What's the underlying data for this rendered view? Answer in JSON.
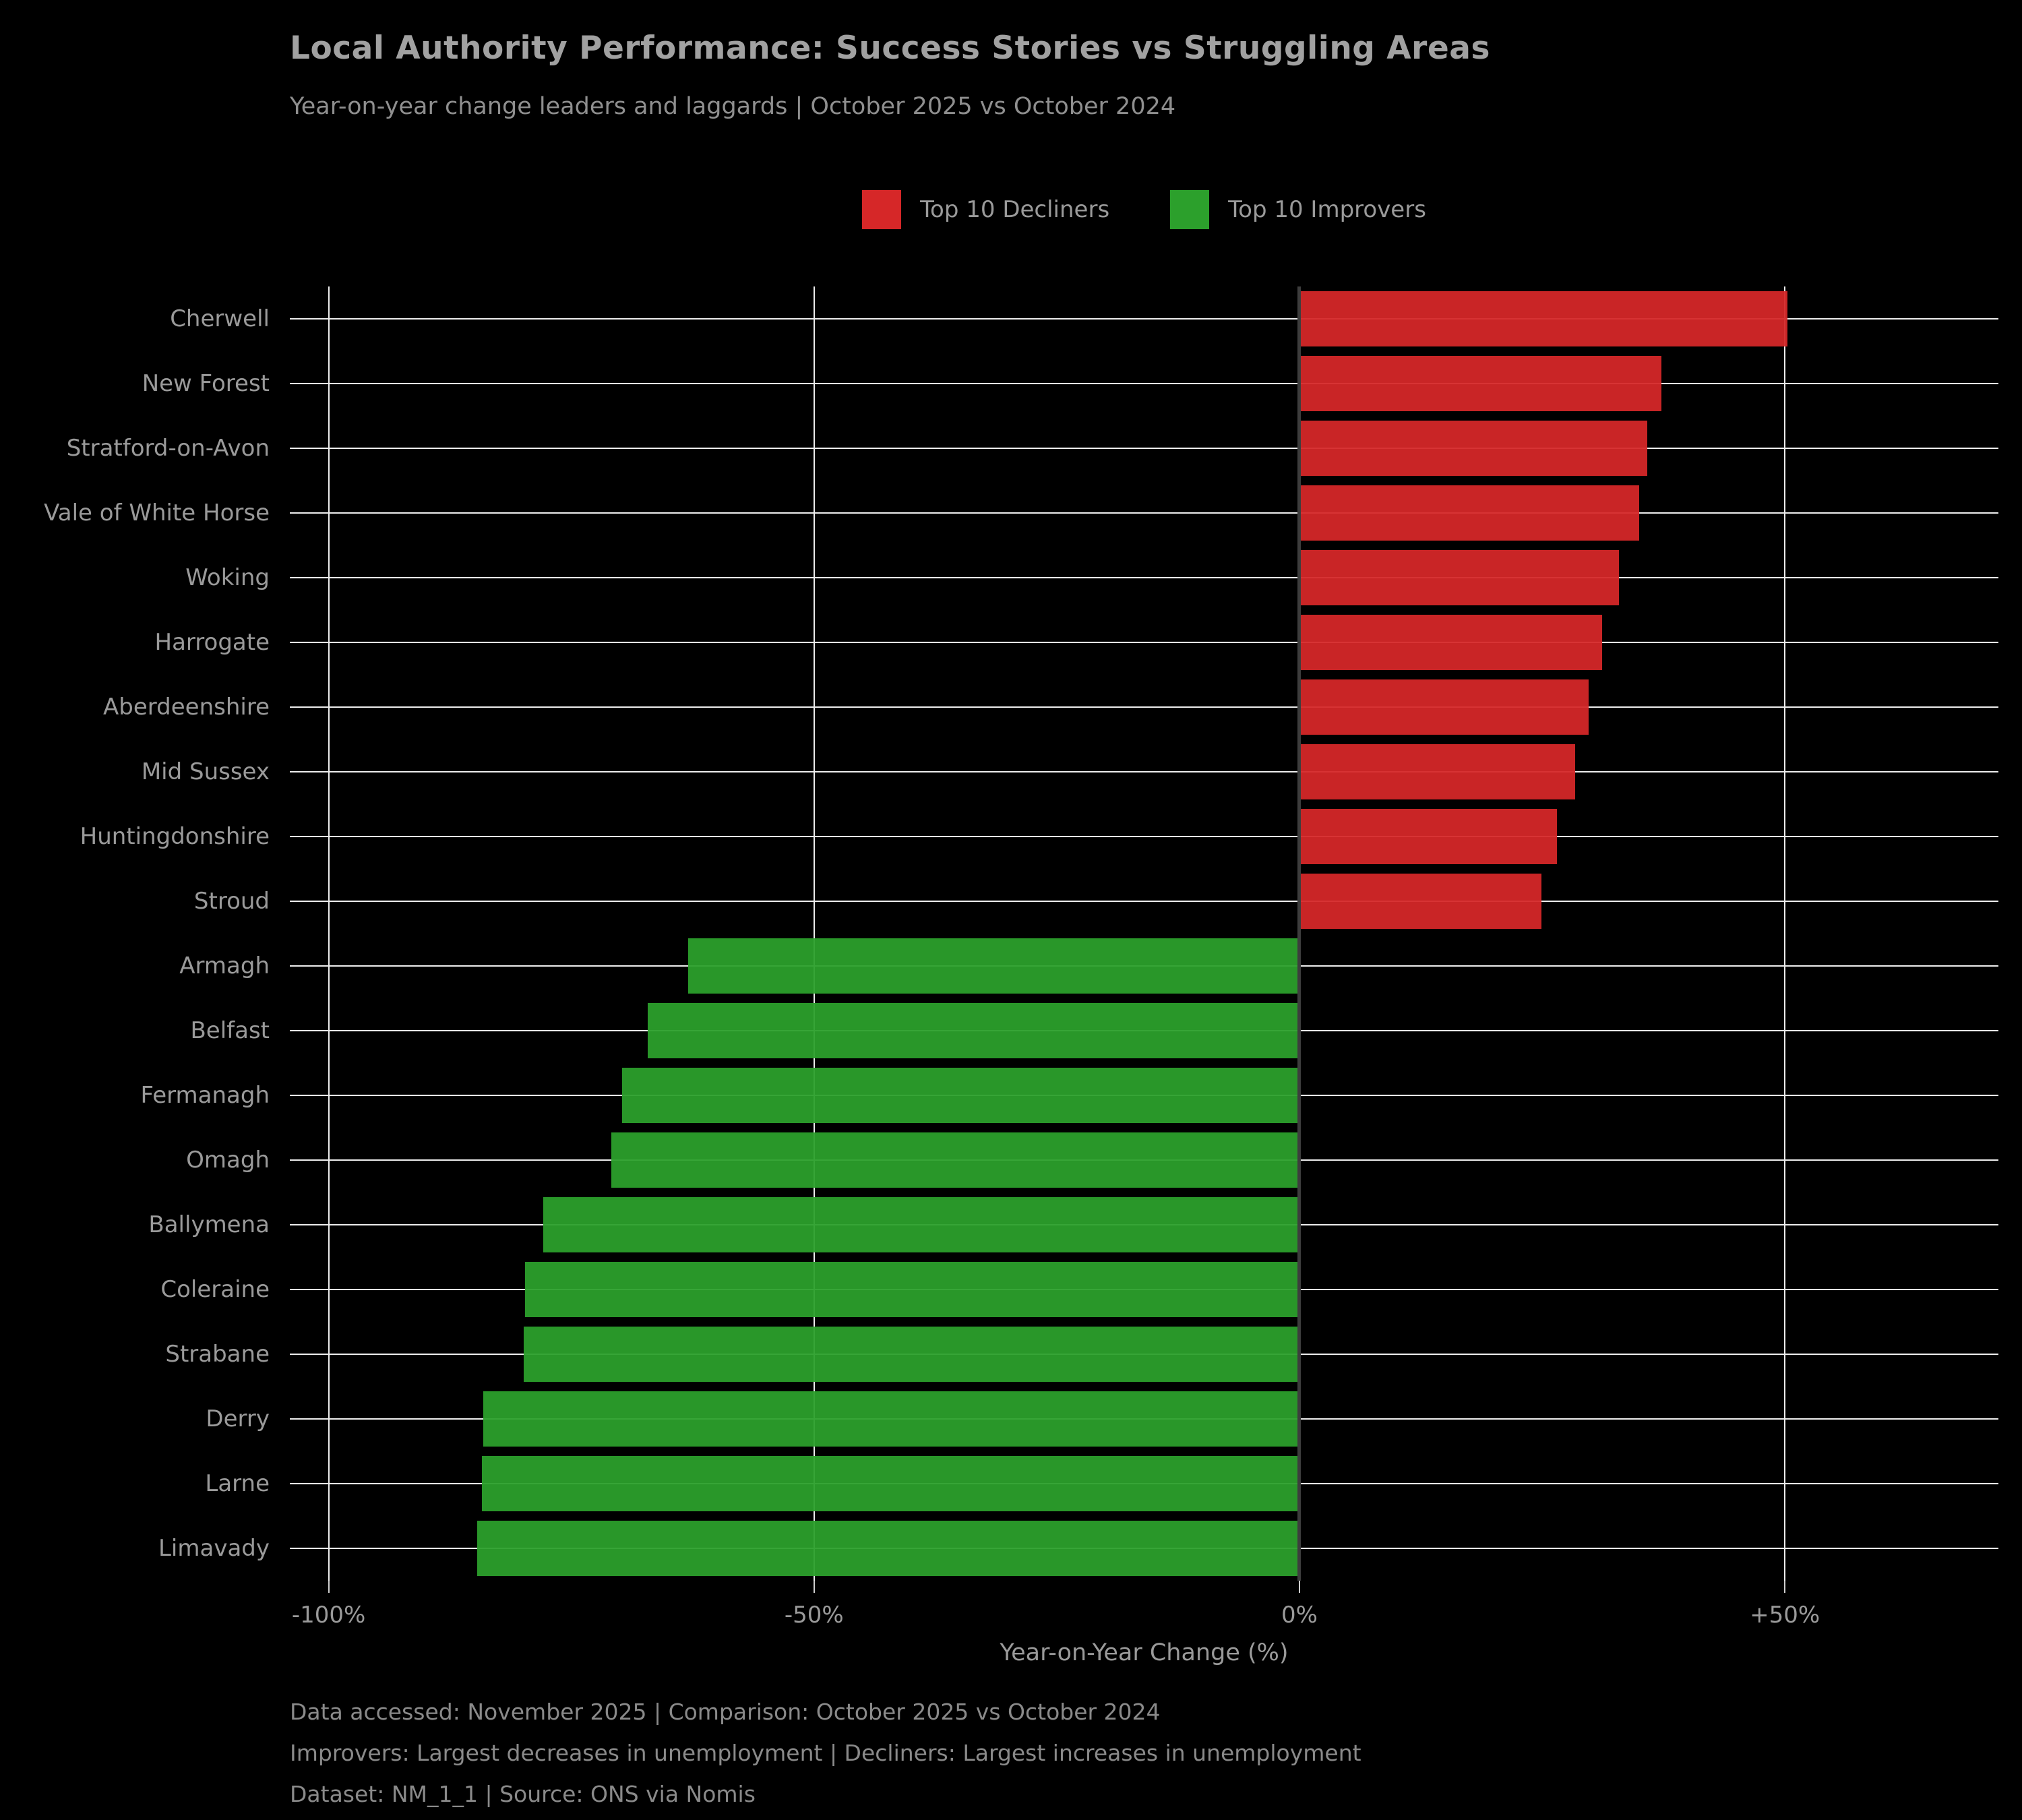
{
  "title": "Local Authority Performance: Success Stories vs Struggling Areas",
  "subtitle": "Year-on-year change leaders and laggards | October 2025 vs October 2024",
  "legend": {
    "items": [
      {
        "label": "Top 10 Decliners",
        "color": "#d62728",
        "group": "decliner"
      },
      {
        "label": "Top 10 Improvers",
        "color": "#2ca02c",
        "group": "improver"
      }
    ]
  },
  "chart_data": {
    "type": "bar",
    "orientation": "horizontal",
    "title": "Local Authority Performance: Success Stories vs Struggling Areas",
    "xlabel": "Year-on-Year Change (%)",
    "ylabel": "",
    "xlim": [
      -104,
      72
    ],
    "grid": true,
    "legend_position": "top-center",
    "xticks": [
      {
        "value": -100,
        "label": "-100%"
      },
      {
        "value": -50,
        "label": "-50%"
      },
      {
        "value": 0,
        "label": "0%"
      },
      {
        "value": 50,
        "label": "+50%"
      }
    ],
    "categories": [
      "Cherwell",
      "New Forest",
      "Stratford-on-Avon",
      "Vale of White Horse",
      "Woking",
      "Harrogate",
      "Aberdeenshire",
      "Mid Sussex",
      "Huntingdonshire",
      "Stroud",
      "Armagh",
      "Belfast",
      "Fermanagh",
      "Omagh",
      "Ballymena",
      "Coleraine",
      "Strabane",
      "Derry",
      "Larne",
      "Limavady"
    ],
    "values": [
      50.3,
      37.3,
      35.8,
      35.0,
      32.9,
      31.2,
      29.8,
      28.4,
      26.5,
      24.9,
      -63.0,
      -67.1,
      -69.8,
      -70.9,
      -77.9,
      -79.8,
      -79.9,
      -84.1,
      -84.2,
      -84.7
    ],
    "groups": [
      "decliner",
      "decliner",
      "decliner",
      "decliner",
      "decliner",
      "decliner",
      "decliner",
      "decliner",
      "decliner",
      "decliner",
      "improver",
      "improver",
      "improver",
      "improver",
      "improver",
      "improver",
      "improver",
      "improver",
      "improver",
      "improver"
    ],
    "colors": {
      "decliner": "#d62728",
      "improver": "#2ca02c"
    },
    "gridline_color": "#ededed",
    "zero_line_color": "#3d3d3d",
    "background_color": "#000000"
  },
  "footer": {
    "line1": "Data accessed: November 2025 | Comparison: October 2025 vs October 2024",
    "line2": "Improvers: Largest decreases in unemployment | Decliners: Largest increases in unemployment",
    "line3": "Dataset: NM_1_1 | Source: ONS via Nomis"
  }
}
